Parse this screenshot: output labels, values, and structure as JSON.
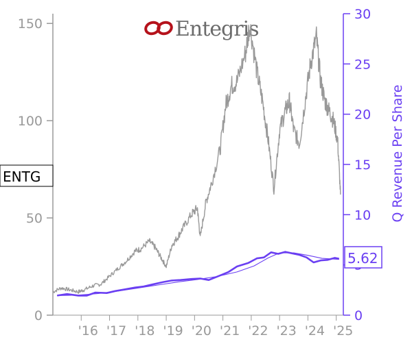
{
  "chart_data": {
    "type": "line",
    "title": "",
    "ticker": "ENTG",
    "logo_text": "Entegris",
    "x_tick_labels": [
      "'16",
      "'17",
      "'18",
      "'19",
      "'20",
      "'21",
      "'22",
      "'23",
      "'24",
      "'25"
    ],
    "x_range": [
      2015.0,
      2025.25
    ],
    "y_left": {
      "range": [
        0,
        155
      ],
      "ticks": [
        0,
        50,
        100,
        150
      ]
    },
    "y_right": {
      "label": "Q Revenue Per Share",
      "range": [
        0,
        30
      ],
      "ticks": [
        0,
        5,
        10,
        15,
        20,
        25,
        30
      ]
    },
    "last_value_label": "5.62",
    "series": [
      {
        "key": "price",
        "axis": "left",
        "color": "#999999",
        "x": [
          2015.0,
          2015.3,
          2015.6,
          2015.9,
          2016.1,
          2016.4,
          2016.7,
          2017.0,
          2017.3,
          2017.6,
          2017.9,
          2018.1,
          2018.4,
          2018.6,
          2018.8,
          2019.0,
          2019.2,
          2019.4,
          2019.6,
          2019.9,
          2020.1,
          2020.2,
          2020.4,
          2020.6,
          2020.9,
          2021.1,
          2021.3,
          2021.5,
          2021.8,
          2021.95,
          2022.2,
          2022.4,
          2022.6,
          2022.8,
          2023.0,
          2023.2,
          2023.35,
          2023.5,
          2023.7,
          2023.9,
          2024.1,
          2024.3,
          2024.45,
          2024.6,
          2024.75,
          2024.9,
          2025.05,
          2025.15
        ],
        "values": [
          12,
          14,
          13,
          12,
          13,
          15,
          16,
          20,
          24,
          28,
          33,
          34,
          38,
          35,
          30,
          25,
          36,
          40,
          45,
          52,
          55,
          40,
          58,
          68,
          85,
          108,
          118,
          120,
          135,
          150,
          125,
          110,
          90,
          65,
          95,
          105,
          110,
          95,
          88,
          110,
          130,
          143,
          120,
          110,
          105,
          100,
          90,
          62
        ]
      },
      {
        "key": "revenue",
        "axis": "right",
        "color": "#6a3ff2",
        "x": [
          2015.15,
          2015.5,
          2015.9,
          2016.2,
          2016.5,
          2016.9,
          2017.2,
          2017.5,
          2017.9,
          2018.2,
          2018.5,
          2018.9,
          2019.2,
          2019.5,
          2019.9,
          2020.2,
          2020.5,
          2020.9,
          2021.2,
          2021.5,
          2021.9,
          2022.2,
          2022.45,
          2022.7,
          2022.95,
          2023.2,
          2023.45,
          2023.7,
          2023.95,
          2024.2,
          2024.45,
          2024.7,
          2024.95,
          2025.1
        ],
        "values": [
          1.95,
          2.1,
          1.95,
          1.95,
          2.25,
          2.2,
          2.4,
          2.55,
          2.75,
          2.85,
          3.05,
          3.3,
          3.45,
          3.5,
          3.6,
          3.65,
          3.5,
          3.95,
          4.3,
          4.85,
          5.2,
          5.65,
          5.75,
          6.25,
          6.1,
          6.3,
          6.15,
          6.0,
          5.75,
          5.25,
          5.45,
          5.5,
          5.7,
          5.62
        ]
      },
      {
        "key": "revenue_trend",
        "axis": "right",
        "color": "#6a3ff2",
        "x": [
          2015.15,
          2015.9,
          2016.6,
          2017.3,
          2018.0,
          2018.7,
          2019.4,
          2020.1,
          2020.8,
          2021.5,
          2022.1,
          2022.6,
          2023.0,
          2023.5,
          2024.0,
          2024.5,
          2025.1
        ],
        "values": [
          1.95,
          2.0,
          2.15,
          2.4,
          2.7,
          3.0,
          3.3,
          3.55,
          3.85,
          4.3,
          4.9,
          5.7,
          6.2,
          6.2,
          5.95,
          5.65,
          5.55
        ]
      }
    ]
  }
}
